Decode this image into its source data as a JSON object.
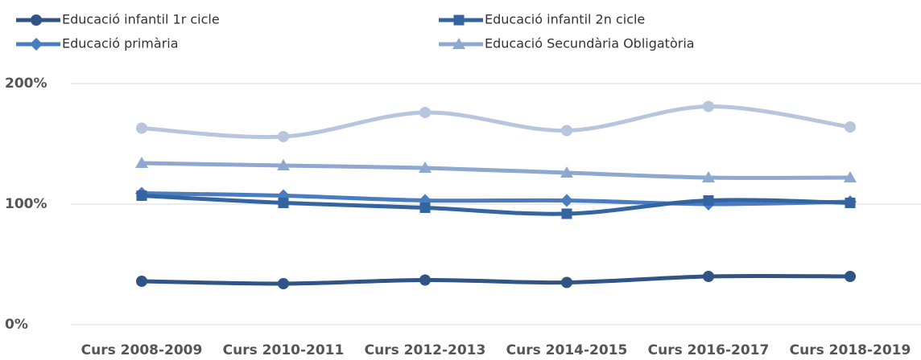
{
  "chart_data": {
    "type": "line",
    "smooth": true,
    "grid": true,
    "categories": [
      "Curs 2008-2009",
      "Curs 2010-2011",
      "Curs 2012-2013",
      "Curs 2014-2015",
      "Curs 2016-2017",
      "Curs 2018-2019"
    ],
    "ylim": [
      0,
      200
    ],
    "yticks": [
      {
        "value": 0,
        "label": "0%"
      },
      {
        "value": 100,
        "label": "100%"
      },
      {
        "value": 200,
        "label": "200%"
      }
    ],
    "series": [
      {
        "name": "Educació infantil 1r cicle",
        "color": "#2f5485",
        "marker": "circle",
        "values": [
          36,
          34,
          37,
          35,
          40,
          40
        ]
      },
      {
        "name": "Educació infantil 2n cicle",
        "color": "#3565a0",
        "marker": "square",
        "values": [
          107,
          101,
          97,
          92,
          103,
          101
        ]
      },
      {
        "name": "Educació primària",
        "color": "#4a7cc0",
        "marker": "diamond",
        "values": [
          109,
          107,
          103,
          103,
          100,
          102
        ]
      },
      {
        "name": "Educació Secundària Obligatòria",
        "color": "#8fa8cf",
        "marker": "triangle",
        "values": [
          134,
          132,
          130,
          126,
          122,
          122
        ]
      },
      {
        "color": "#b8c6dd",
        "marker": "circle",
        "values": [
          163,
          156,
          176,
          161,
          181,
          164
        ]
      }
    ]
  }
}
